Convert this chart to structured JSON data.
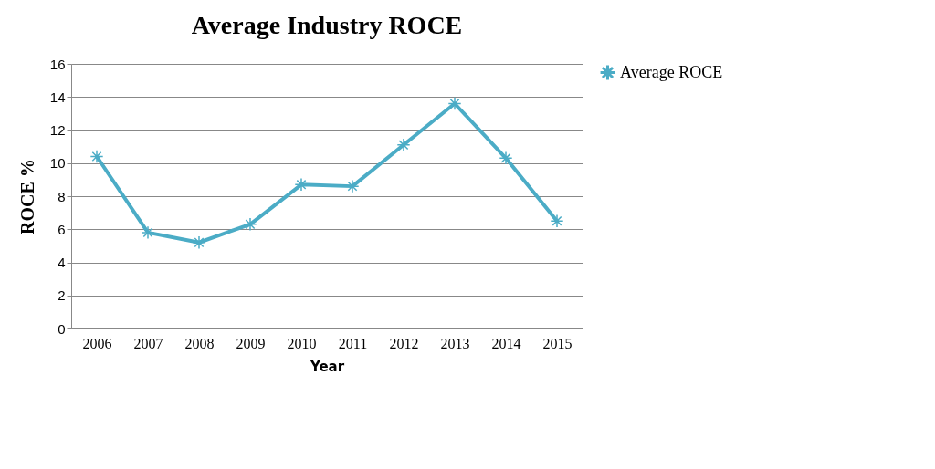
{
  "chart_data": {
    "type": "line",
    "title": "Average Industry ROCE",
    "xlabel": "Year",
    "ylabel": "ROCE %",
    "categories": [
      "2006",
      "2007",
      "2008",
      "2009",
      "2010",
      "2011",
      "2012",
      "2013",
      "2014",
      "2015"
    ],
    "series": [
      {
        "name": "Average ROCE",
        "color": "#4bacc6",
        "values": [
          10.4,
          5.8,
          5.2,
          6.3,
          8.7,
          8.6,
          11.1,
          13.6,
          10.3,
          6.5
        ]
      }
    ],
    "ylim": [
      0,
      16
    ],
    "yticks": [
      0,
      2,
      4,
      6,
      8,
      10,
      12,
      14,
      16
    ],
    "grid": "y",
    "legend": "right",
    "marker": "cross",
    "line_style": "solid"
  }
}
